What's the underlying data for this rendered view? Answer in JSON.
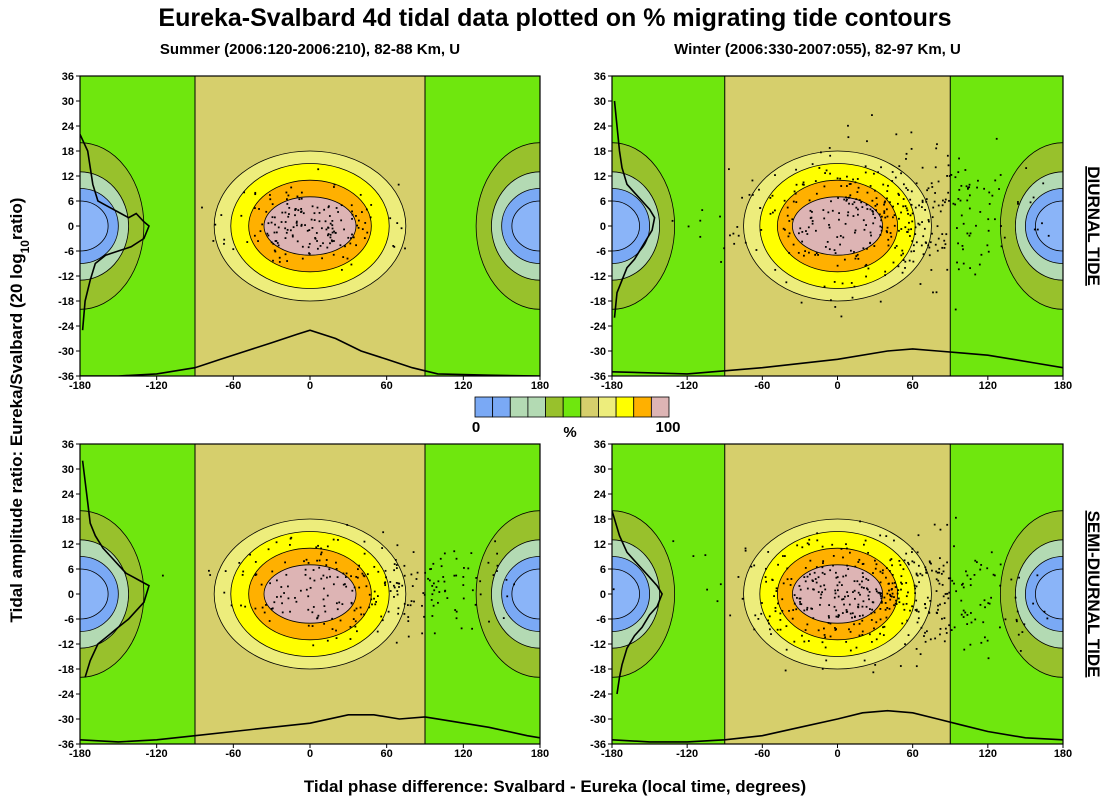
{
  "figure": {
    "title": "Eureka-Svalbard 4d tidal data plotted on % migrating tide contours",
    "ylabel_main": "Tidal amplitude ratio:  Eureka/Svalbard (20 log",
    "ylabel_sub": "10",
    "ylabel_end": "ratio)",
    "xlabel": "Tidal phase difference: Svalbard - Eureka (local time, degrees)",
    "row_labels": [
      "DIURNAL TIDE",
      "SEMI-DIURNAL TIDE"
    ],
    "colorbar": {
      "label_min": "0",
      "label_unit": "%",
      "label_max": "100",
      "colors": [
        "#7aa9f5",
        "#7aa9f5",
        "#b3dab3",
        "#b3dab3",
        "#98c12c",
        "#6fe70e",
        "#d6cf6c",
        "#eded7c",
        "#ffff00",
        "#ffb000",
        "#ddb4b4"
      ]
    }
  },
  "chart_data": [
    {
      "type": "contour",
      "title": "Summer (2006:120-2006:210), 82-88 Km, U",
      "row": "DIURNAL TIDE",
      "xlim": [
        -180,
        180
      ],
      "ylim": [
        -36,
        36
      ],
      "xticks": [
        -180,
        -120,
        -60,
        0,
        60,
        120,
        180
      ],
      "yticks": [
        36,
        30,
        24,
        18,
        12,
        6,
        0,
        -6,
        -12,
        -18,
        -24,
        -30,
        -36
      ],
      "scatter_cluster": {
        "center": [
          0,
          0
        ],
        "spread": [
          30,
          5
        ],
        "count": 180,
        "seed": 11
      },
      "histogram_y": [
        [
          -180,
          22
        ],
        [
          -174,
          18
        ],
        [
          -170,
          10
        ],
        [
          -166,
          6
        ],
        [
          -160,
          5
        ],
        [
          -154,
          4
        ],
        [
          -148,
          3
        ],
        [
          -142,
          2
        ],
        [
          -136,
          3
        ],
        [
          -130,
          1
        ],
        [
          -126,
          0
        ],
        [
          -130,
          -3
        ],
        [
          -140,
          -5
        ],
        [
          -150,
          -6
        ],
        [
          -160,
          -7
        ],
        [
          -168,
          -9
        ],
        [
          -172,
          -13
        ],
        [
          -176,
          -18
        ],
        [
          -178,
          -25
        ]
      ],
      "histogram_x": [
        [
          -180,
          -36
        ],
        [
          -150,
          -36
        ],
        [
          -120,
          -35.5
        ],
        [
          -90,
          -34
        ],
        [
          -70,
          -32
        ],
        [
          -50,
          -30
        ],
        [
          -30,
          -28
        ],
        [
          -10,
          -26
        ],
        [
          0,
          -25
        ],
        [
          20,
          -27
        ],
        [
          40,
          -30
        ],
        [
          60,
          -32
        ],
        [
          80,
          -34
        ],
        [
          100,
          -35.5
        ],
        [
          140,
          -35.8
        ],
        [
          180,
          -36
        ]
      ]
    },
    {
      "type": "contour",
      "title": "Winter (2006:330-2007:055), 82-97 Km, U",
      "row": "DIURNAL TIDE",
      "xlim": [
        -180,
        180
      ],
      "ylim": [
        -36,
        36
      ],
      "xticks": [
        -180,
        -120,
        -60,
        0,
        60,
        120,
        180
      ],
      "yticks": [
        36,
        30,
        24,
        18,
        12,
        6,
        0,
        -6,
        -12,
        -18,
        -24,
        -30,
        -36
      ],
      "scatter_cluster": {
        "center": [
          30,
          2
        ],
        "spread": [
          55,
          8
        ],
        "count": 420,
        "seed": 23
      },
      "histogram_y": [
        [
          -178,
          30
        ],
        [
          -176,
          24
        ],
        [
          -174,
          18
        ],
        [
          -172,
          14
        ],
        [
          -168,
          10
        ],
        [
          -162,
          8
        ],
        [
          -156,
          6
        ],
        [
          -150,
          4
        ],
        [
          -146,
          2
        ],
        [
          -148,
          -1
        ],
        [
          -152,
          -3
        ],
        [
          -156,
          -5
        ],
        [
          -162,
          -8
        ],
        [
          -168,
          -10
        ],
        [
          -172,
          -13
        ],
        [
          -176,
          -16
        ],
        [
          -178,
          -22
        ]
      ],
      "histogram_x": [
        [
          -180,
          -35
        ],
        [
          -120,
          -35.5
        ],
        [
          -60,
          -34
        ],
        [
          0,
          -32
        ],
        [
          40,
          -30
        ],
        [
          60,
          -29.5
        ],
        [
          80,
          -30
        ],
        [
          100,
          -30.5
        ],
        [
          120,
          -31
        ],
        [
          140,
          -32
        ],
        [
          160,
          -33
        ],
        [
          180,
          -34
        ]
      ]
    },
    {
      "type": "contour",
      "title": "",
      "row": "SEMI-DIURNAL TIDE",
      "xlim": [
        -180,
        180
      ],
      "ylim": [
        -36,
        36
      ],
      "xticks": [
        -180,
        -120,
        -60,
        0,
        60,
        120,
        180
      ],
      "yticks": [
        36,
        30,
        24,
        18,
        12,
        6,
        0,
        -6,
        -12,
        -18,
        -24,
        -30,
        -36
      ],
      "scatter_cluster": {
        "center": [
          40,
          2
        ],
        "spread": [
          50,
          6
        ],
        "count": 260,
        "seed": 37
      },
      "histogram_y": [
        [
          -178,
          32
        ],
        [
          -174,
          22
        ],
        [
          -172,
          17
        ],
        [
          -168,
          14
        ],
        [
          -162,
          11
        ],
        [
          -156,
          9
        ],
        [
          -150,
          7
        ],
        [
          -144,
          5
        ],
        [
          -138,
          4
        ],
        [
          -132,
          3
        ],
        [
          -126,
          2
        ],
        [
          -130,
          -2
        ],
        [
          -136,
          -4
        ],
        [
          -142,
          -6
        ],
        [
          -150,
          -8
        ],
        [
          -158,
          -10
        ],
        [
          -166,
          -12
        ],
        [
          -172,
          -16
        ],
        [
          -176,
          -20
        ]
      ],
      "histogram_x": [
        [
          -180,
          -35
        ],
        [
          -150,
          -35.5
        ],
        [
          -120,
          -35
        ],
        [
          -90,
          -34
        ],
        [
          -60,
          -33
        ],
        [
          -30,
          -32
        ],
        [
          0,
          -31
        ],
        [
          30,
          -29
        ],
        [
          50,
          -29
        ],
        [
          70,
          -30
        ],
        [
          90,
          -29.5
        ],
        [
          110,
          -30.5
        ],
        [
          140,
          -32
        ],
        [
          170,
          -34
        ],
        [
          180,
          -34.5
        ]
      ]
    },
    {
      "type": "contour",
      "title": "",
      "row": "SEMI-DIURNAL TIDE",
      "xlim": [
        -180,
        180
      ],
      "ylim": [
        -36,
        36
      ],
      "xticks": [
        -180,
        -120,
        -60,
        0,
        60,
        120,
        180
      ],
      "yticks": [
        36,
        30,
        24,
        18,
        12,
        6,
        0,
        -6,
        -12,
        -18,
        -24,
        -30,
        -36
      ],
      "scatter_cluster": {
        "center": [
          35,
          -1
        ],
        "spread": [
          55,
          7
        ],
        "count": 480,
        "seed": 51
      },
      "histogram_y": [
        [
          -180,
          20
        ],
        [
          -174,
          14
        ],
        [
          -168,
          10
        ],
        [
          -162,
          8
        ],
        [
          -156,
          6
        ],
        [
          -150,
          4
        ],
        [
          -144,
          2
        ],
        [
          -140,
          0
        ],
        [
          -144,
          -3
        ],
        [
          -150,
          -5
        ],
        [
          -156,
          -8
        ],
        [
          -162,
          -10
        ],
        [
          -168,
          -13
        ],
        [
          -172,
          -17
        ],
        [
          -174,
          -20
        ],
        [
          -176,
          -24
        ]
      ],
      "histogram_x": [
        [
          -180,
          -35
        ],
        [
          -150,
          -35.5
        ],
        [
          -120,
          -35.5
        ],
        [
          -90,
          -35
        ],
        [
          -60,
          -34
        ],
        [
          -30,
          -32
        ],
        [
          0,
          -30
        ],
        [
          20,
          -28.5
        ],
        [
          40,
          -28
        ],
        [
          60,
          -28.5
        ],
        [
          80,
          -30
        ],
        [
          100,
          -31.5
        ],
        [
          120,
          -33
        ],
        [
          150,
          -34.5
        ],
        [
          180,
          -35
        ]
      ]
    }
  ]
}
